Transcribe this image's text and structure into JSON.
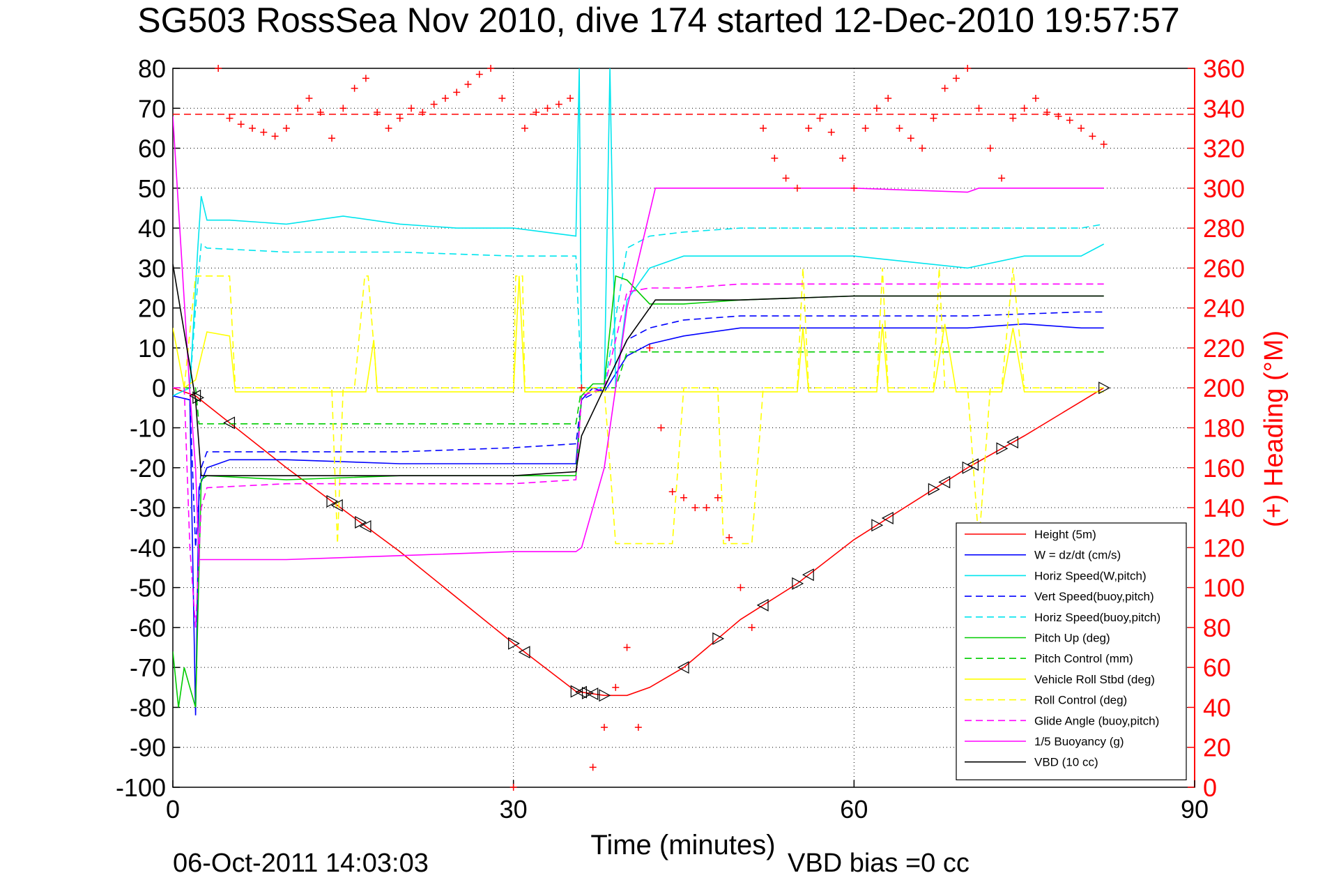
{
  "chart_data": {
    "type": "line",
    "title": "SG503 RossSea Nov 2010, dive 174 started 12-Dec-2010 19:57:57",
    "xlabel": "Time (minutes)",
    "ylabel_right": "(+) Heading (°M)",
    "xlim": [
      0,
      90
    ],
    "ylim": [
      -100,
      80
    ],
    "ylim_right": [
      0,
      360
    ],
    "xticks": [
      "0",
      "30",
      "60",
      "90"
    ],
    "yticks": [
      "80",
      "70",
      "60",
      "50",
      "40",
      "30",
      "20",
      "10",
      "0",
      "-10",
      "-20",
      "-30",
      "-40",
      "-50",
      "-60",
      "-70",
      "-80",
      "-90",
      "-100"
    ],
    "yticks_right": [
      "360",
      "340",
      "320",
      "300",
      "280",
      "260",
      "240",
      "220",
      "200",
      "180",
      "160",
      "140",
      "120",
      "100",
      "80",
      "60",
      "40",
      "20",
      "0"
    ],
    "grid": true,
    "legend_position": "bottom-right",
    "footer_left": "06-Oct-2011 14:03:03",
    "footer_right": "VBD bias =0 cc",
    "heading_reference": 337,
    "series": [
      {
        "name": "Height (5m)",
        "color": "#ff0000",
        "style": "solid",
        "x": [
          0,
          2,
          10,
          20,
          30,
          35.5,
          38,
          40,
          42,
          45,
          50,
          55,
          60,
          65,
          70,
          75,
          82
        ],
        "y": [
          0,
          -2,
          -20,
          -41,
          -64,
          -76,
          -77,
          -77,
          -75,
          -70,
          -58,
          -49,
          -38,
          -29,
          -20,
          -12,
          0
        ]
      },
      {
        "name": "W = dz/dt (cm/s)",
        "color": "#0000ff",
        "style": "solid",
        "x": [
          0,
          1.5,
          2,
          2.3,
          3,
          5,
          10,
          20,
          30,
          35.5,
          36,
          37,
          38,
          40,
          42,
          45,
          50,
          60,
          70,
          75,
          80,
          82
        ],
        "y": [
          -2,
          -3,
          -82,
          -25,
          -20,
          -18,
          -18,
          -19,
          -19,
          -19,
          -3,
          0,
          -1,
          8,
          11,
          13,
          15,
          15,
          15,
          16,
          15,
          15
        ]
      },
      {
        "name": "Horiz Speed(W,pitch)",
        "color": "#00e5ee",
        "style": "solid",
        "x": [
          0,
          1.5,
          2.2,
          2.5,
          3,
          5,
          10,
          15,
          20,
          25,
          30,
          35.5,
          35.8,
          36,
          37,
          38,
          38.5,
          39,
          40,
          42,
          45,
          50,
          60,
          70,
          75,
          80,
          82
        ],
        "y": [
          -2,
          0,
          35,
          48,
          42,
          42,
          41,
          43,
          41,
          40,
          40,
          38,
          80,
          0,
          0,
          0,
          80,
          0,
          22,
          30,
          33,
          33,
          33,
          30,
          33,
          33,
          36
        ]
      },
      {
        "name": "Vert Speed(buoy,pitch)",
        "color": "#0000ff",
        "style": "dashed",
        "x": [
          0,
          1.5,
          2,
          2.5,
          3,
          10,
          20,
          30,
          35.5,
          36,
          38,
          40,
          42,
          45,
          50,
          60,
          70,
          80,
          82
        ],
        "y": [
          -2,
          -3,
          -40,
          -20,
          -16,
          -16,
          -16,
          -15,
          -14,
          -3,
          0,
          12,
          15,
          17,
          18,
          18,
          18,
          19,
          19
        ]
      },
      {
        "name": "Horiz Speed(buoy,pitch)",
        "color": "#00e5ee",
        "style": "dashed",
        "x": [
          0,
          1.5,
          2,
          2.5,
          3,
          10,
          20,
          30,
          35.5,
          36,
          38,
          40,
          42,
          45,
          50,
          60,
          70,
          80,
          82
        ],
        "y": [
          -2,
          0,
          20,
          36,
          35,
          34,
          34,
          33,
          33,
          0,
          0,
          35,
          38,
          39,
          40,
          40,
          40,
          40,
          41
        ]
      },
      {
        "name": "Pitch Up (deg)",
        "color": "#00cc00",
        "style": "solid",
        "x": [
          0,
          0.5,
          1,
          1.5,
          2,
          2.5,
          3,
          10,
          20,
          30,
          35.5,
          36,
          37,
          38,
          39,
          40,
          42,
          45,
          50,
          60,
          70,
          80,
          82
        ],
        "y": [
          -66,
          -80,
          -70,
          -75,
          -80,
          -23,
          -22,
          -23,
          -22,
          -22,
          -22,
          -2,
          1,
          1,
          28,
          27,
          21,
          21,
          22,
          23,
          23,
          23,
          23
        ]
      },
      {
        "name": "Pitch Control (mm)",
        "color": "#00cc00",
        "style": "dashed",
        "x": [
          0,
          2,
          2.3,
          10,
          20,
          30,
          35.5,
          36,
          39,
          40,
          45,
          50,
          60,
          70,
          80,
          82
        ],
        "y": [
          0,
          0,
          -9,
          -9,
          -9,
          -9,
          -9,
          0,
          0,
          9,
          9,
          9,
          9,
          9,
          9,
          9
        ]
      },
      {
        "name": "Vehicle Roll Stbd (deg)",
        "color": "#ffff00",
        "style": "solid",
        "x": [
          0,
          1,
          2,
          3,
          5,
          5.5,
          10,
          14.5,
          16,
          17,
          17.7,
          18,
          20,
          30,
          30.5,
          31,
          35,
          38,
          39,
          42,
          45,
          50,
          55,
          55.5,
          56,
          60,
          62,
          62.5,
          63,
          67,
          68,
          69,
          70,
          73,
          74,
          75,
          80,
          82
        ],
        "y": [
          15,
          0,
          2,
          14,
          13,
          -1,
          -1,
          -1,
          -1,
          -1,
          12,
          -1,
          -1,
          -1,
          28,
          -1,
          -1,
          -1,
          -1,
          -1,
          -1,
          -1,
          -1,
          15,
          -1,
          -1,
          -1,
          16,
          -1,
          -1,
          16,
          -1,
          -1,
          -1,
          15,
          -1,
          -1,
          -1
        ]
      },
      {
        "name": "Roll Control (deg)",
        "color": "#ffff00",
        "style": "dashed",
        "x": [
          0,
          1,
          2,
          3,
          5,
          5.5,
          14,
          14.5,
          15,
          16,
          16.9,
          17.2,
          18,
          30,
          30.2,
          30.8,
          31,
          35,
          38,
          39,
          40,
          42,
          44,
          45,
          45.5,
          48,
          48.5,
          51,
          52,
          55,
          55.5,
          56,
          62,
          62.5,
          63,
          67,
          67.5,
          68,
          70,
          71,
          72,
          73,
          74,
          75,
          82
        ],
        "y": [
          0,
          0,
          28,
          28,
          28,
          0,
          0,
          -39,
          0,
          0,
          28,
          28,
          0,
          0,
          28,
          28,
          0,
          0,
          0,
          -39,
          -39,
          -39,
          -39,
          0,
          0,
          0,
          -39,
          -39,
          0,
          0,
          30,
          0,
          0,
          30,
          0,
          0,
          30,
          0,
          0,
          -39,
          0,
          0,
          30,
          0,
          0
        ]
      },
      {
        "name": "Glide Angle (buoy,pitch)",
        "color": "#ff00ff",
        "style": "dashed",
        "x": [
          0,
          1,
          1.5,
          2,
          2.5,
          3,
          10,
          20,
          30,
          35.5,
          36,
          38,
          40,
          42,
          45,
          50,
          60,
          70,
          80,
          82
        ],
        "y": [
          0,
          0,
          -40,
          -60,
          -30,
          -25,
          -24,
          -24,
          -24,
          -23,
          -2,
          0,
          24,
          25,
          25,
          26,
          26,
          26,
          26,
          26
        ]
      },
      {
        "name": "1/5 Buoyancy (g)",
        "color": "#ff00ff",
        "style": "solid",
        "x": [
          0,
          1.5,
          2,
          2.3,
          3,
          10,
          20,
          30,
          35.5,
          36,
          38,
          40,
          42.5,
          45,
          50,
          60,
          70,
          71,
          75,
          80,
          82
        ],
        "y": [
          68,
          -1,
          -20,
          -43,
          -43,
          -43,
          -42,
          -41,
          -41,
          -40,
          -20,
          20,
          50,
          50,
          50,
          50,
          49,
          50,
          50,
          50,
          50
        ]
      },
      {
        "name": "VBD (10 cc)",
        "color": "#000000",
        "style": "solid",
        "x": [
          0,
          2,
          2.5,
          10,
          20,
          30,
          35.5,
          36,
          38,
          40,
          42.5,
          45,
          50,
          60,
          70,
          82
        ],
        "y": [
          31,
          -3,
          -22,
          -22,
          -22,
          -22,
          -21,
          -12,
          0,
          12,
          22,
          22,
          22,
          23,
          23,
          23
        ]
      }
    ],
    "heading_points": {
      "name": "Heading (°M)",
      "color": "#ff0000",
      "marker": "+",
      "x": [
        4,
        5,
        6,
        7,
        8,
        9,
        10,
        11,
        12,
        13,
        14,
        15,
        16,
        17,
        18,
        19,
        20,
        21,
        22,
        23,
        24,
        25,
        26,
        27,
        28,
        29,
        30,
        31,
        32,
        33,
        34,
        35,
        36,
        37,
        38,
        39,
        40,
        41,
        42,
        43,
        44,
        45,
        46,
        47,
        48,
        49,
        50,
        51,
        52,
        53,
        54,
        55,
        56,
        57,
        58,
        59,
        60,
        61,
        62,
        63,
        64,
        65,
        66,
        67,
        68,
        69,
        70,
        71,
        72,
        73,
        74,
        75,
        76,
        77,
        78,
        79,
        80,
        81,
        82
      ],
      "y": [
        360,
        335,
        332,
        330,
        328,
        326,
        330,
        340,
        345,
        338,
        325,
        340,
        350,
        355,
        338,
        330,
        335,
        340,
        338,
        342,
        345,
        348,
        352,
        357,
        360,
        345,
        0,
        330,
        338,
        340,
        342,
        345,
        200,
        10,
        30,
        50,
        70,
        30,
        220,
        180,
        148,
        145,
        140,
        140,
        145,
        125,
        100,
        80,
        330,
        315,
        305,
        300,
        330,
        335,
        328,
        315,
        300,
        330,
        340,
        345,
        330,
        325,
        320,
        335,
        350,
        355,
        360,
        340,
        320,
        305,
        335,
        340,
        345,
        338,
        336,
        334,
        330,
        326,
        322
      ]
    },
    "triangle_markers_x": [
      2,
      2.2,
      5,
      14,
      14.5,
      16.5,
      17,
      30,
      31,
      35.5,
      36,
      36.5,
      37,
      38,
      45,
      48,
      52,
      55,
      56,
      62,
      63,
      67,
      68,
      70,
      70.5,
      73,
      74,
      82
    ]
  }
}
